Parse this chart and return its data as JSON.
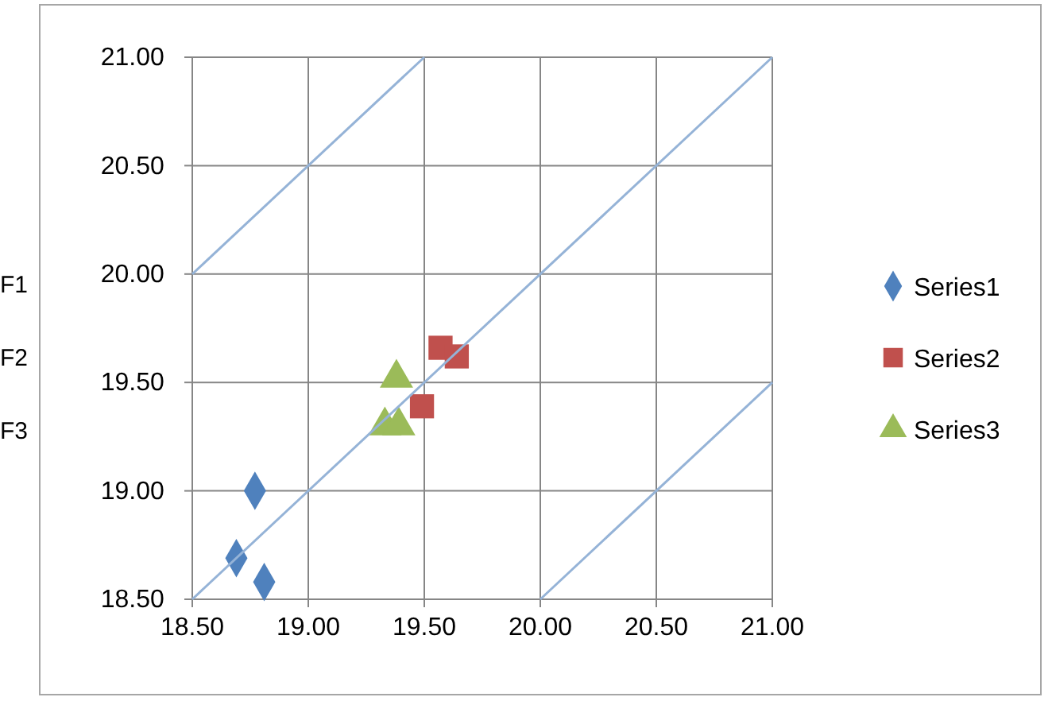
{
  "chart_data": {
    "type": "scatter",
    "xlim": [
      18.5,
      21
    ],
    "ylim": [
      18.5,
      21
    ],
    "xticks": [
      {
        "value": 18.5,
        "label": "18.50"
      },
      {
        "value": 19,
        "label": "19.00"
      },
      {
        "value": 19.5,
        "label": "19.50"
      },
      {
        "value": 20,
        "label": "20.00"
      },
      {
        "value": 20.5,
        "label": "20.50"
      },
      {
        "value": 21,
        "label": "21.00"
      }
    ],
    "yticks": [
      {
        "value": 18.5,
        "label": "18.50"
      },
      {
        "value": 19,
        "label": "19.00"
      },
      {
        "value": 19.5,
        "label": "19.50"
      },
      {
        "value": 20,
        "label": "20.00"
      },
      {
        "value": 20.5,
        "label": "20.50"
      },
      {
        "value": 21,
        "label": "21.00"
      }
    ],
    "grid": true,
    "legend": "right",
    "annotations": [
      "F1",
      "F2",
      "F3"
    ],
    "series": [
      {
        "name": "Series1",
        "color": "#4f81bd",
        "marker": "diamond",
        "x": [
          18.77,
          18.69,
          18.81
        ],
        "values": [
          19.0,
          18.69,
          18.58
        ]
      },
      {
        "name": "Series2",
        "color": "#c0504d",
        "marker": "square",
        "x": [
          19.57,
          19.64,
          19.49
        ],
        "values": [
          19.66,
          19.62,
          19.39
        ]
      },
      {
        "name": "Series3",
        "color": "#9bbb59",
        "marker": "triangle",
        "x": [
          19.38,
          19.33,
          19.39
        ],
        "values": [
          19.52,
          19.3,
          19.3
        ]
      },
      {
        "type": "line",
        "color": "#95b3d7",
        "marker": "none",
        "x": [
          18.5,
          19.5
        ],
        "values": [
          20.0,
          21.0
        ]
      },
      {
        "type": "line",
        "color": "#95b3d7",
        "marker": "none",
        "x": [
          18.5,
          21.0
        ],
        "values": [
          18.5,
          21.0
        ]
      },
      {
        "type": "line",
        "color": "#95b3d7",
        "marker": "none",
        "x": [
          20.0,
          21.0
        ],
        "values": [
          18.5,
          19.5
        ]
      }
    ]
  }
}
